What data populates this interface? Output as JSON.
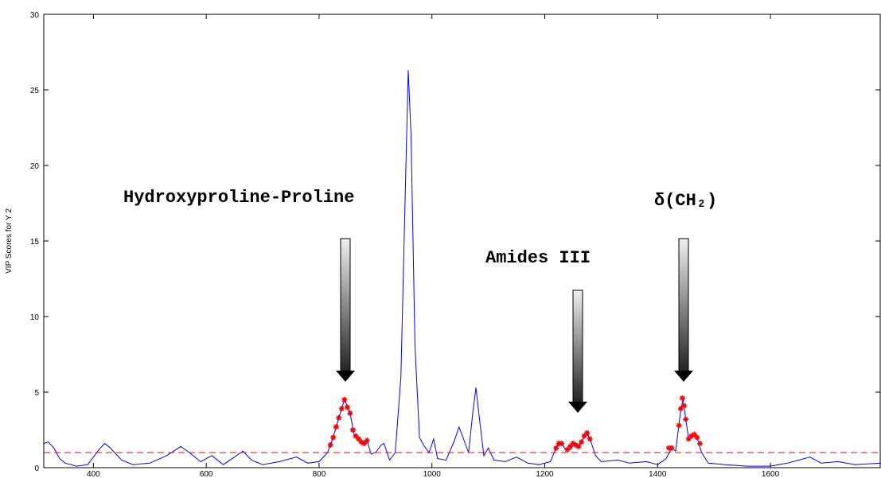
{
  "chart_data": {
    "type": "line",
    "ylabel": "VIP Scores for Y 2",
    "annotations": [
      "Hydroxyproline-Proline",
      "Amides III",
      "δ(CH₂)"
    ],
    "xlim": [
      312,
      1796
    ],
    "ylim": [
      0,
      30
    ],
    "xticks": [
      400,
      600,
      800,
      1000,
      1200,
      1400,
      1600
    ],
    "yticks": [
      0,
      5,
      10,
      15,
      20,
      25,
      30
    ],
    "series": [
      {
        "color": "#0000ff",
        "style": "solid",
        "x": [
          312,
          320,
          330,
          340,
          350,
          370,
          390,
          410,
          420,
          430,
          450,
          470,
          500,
          530,
          555,
          570,
          590,
          610,
          630,
          650,
          665,
          680,
          700,
          730,
          760,
          780,
          800,
          815,
          825,
          835,
          845,
          855,
          862,
          870,
          878,
          885,
          892,
          900,
          910,
          915,
          925,
          935,
          945,
          952,
          958,
          963,
          970,
          978,
          985,
          995,
          1003,
          1010,
          1025,
          1040,
          1048,
          1055,
          1065,
          1072,
          1078,
          1085,
          1092,
          1100,
          1110,
          1130,
          1150,
          1170,
          1190,
          1210,
          1220,
          1228,
          1235,
          1245,
          1252,
          1260,
          1268,
          1275,
          1282,
          1290,
          1300,
          1330,
          1350,
          1380,
          1400,
          1415,
          1425,
          1432,
          1440,
          1445,
          1450,
          1455,
          1462,
          1470,
          1478,
          1490,
          1520,
          1560,
          1600,
          1630,
          1650,
          1670,
          1690,
          1720,
          1750,
          1796
        ],
        "values": [
          1.6,
          1.7,
          1.3,
          0.6,
          0.3,
          0.1,
          0.2,
          1.2,
          1.6,
          1.3,
          0.5,
          0.2,
          0.3,
          0.8,
          1.4,
          1.0,
          0.4,
          0.8,
          0.2,
          0.7,
          1.1,
          0.5,
          0.2,
          0.4,
          0.7,
          0.3,
          0.4,
          1.0,
          2.0,
          3.3,
          4.5,
          3.6,
          2.2,
          1.9,
          1.6,
          1.8,
          0.9,
          1.0,
          1.5,
          1.6,
          0.5,
          1.0,
          6,
          17,
          26.3,
          22,
          8,
          2,
          1.5,
          1.0,
          1.9,
          0.6,
          0.5,
          1.8,
          2.7,
          2.0,
          1.0,
          3.5,
          5.3,
          3.0,
          0.8,
          1.3,
          0.5,
          0.4,
          0.7,
          0.3,
          0.2,
          0.4,
          1.3,
          1.7,
          1.3,
          1.2,
          1.6,
          1.4,
          1.9,
          2.3,
          1.7,
          0.8,
          0.4,
          0.5,
          0.3,
          0.4,
          0.2,
          0.6,
          1.3,
          1.1,
          3.5,
          4.6,
          3.2,
          1.9,
          2.2,
          2.0,
          1.0,
          0.3,
          0.2,
          0.1,
          0.1,
          0.3,
          0.5,
          0.7,
          0.3,
          0.4,
          0.2,
          0.3
        ]
      },
      {
        "color": "#ff0000",
        "style": "dashed",
        "x": [
          312,
          1796
        ],
        "values": [
          1,
          1
        ]
      },
      {
        "color": "#ff0000",
        "style": "markers",
        "x": [
          820,
          825,
          830,
          835,
          840,
          845,
          850,
          855,
          860,
          865,
          870,
          875,
          880,
          885,
          1220,
          1225,
          1230,
          1240,
          1245,
          1250,
          1255,
          1260,
          1265,
          1270,
          1275,
          1280,
          1420,
          1425,
          1438,
          1441,
          1444,
          1447,
          1450,
          1455,
          1460,
          1465,
          1470,
          1475
        ],
        "values": [
          1.5,
          2.0,
          2.7,
          3.3,
          3.9,
          4.5,
          4.0,
          3.6,
          2.5,
          2.1,
          1.9,
          1.7,
          1.6,
          1.8,
          1.3,
          1.6,
          1.6,
          1.2,
          1.4,
          1.6,
          1.5,
          1.4,
          1.7,
          2.1,
          2.3,
          1.9,
          1.3,
          1.3,
          2.8,
          3.9,
          4.6,
          4.1,
          3.2,
          1.9,
          2.1,
          2.2,
          2.0,
          1.6
        ]
      }
    ]
  }
}
